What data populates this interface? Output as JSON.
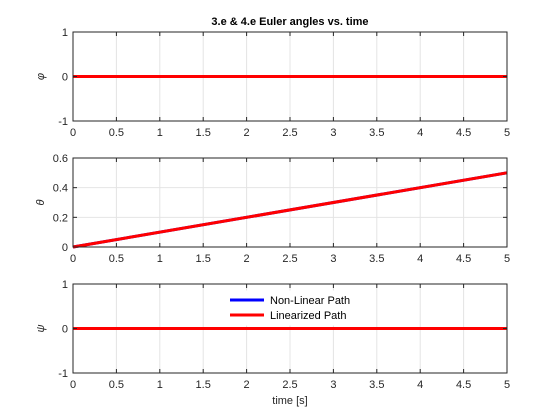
{
  "chart_data": [
    {
      "type": "line",
      "title": "3.e & 4.e Euler angles vs. time",
      "xlabel": "",
      "ylabel": "φ",
      "xlim": [
        0,
        5
      ],
      "ylim": [
        -1,
        1
      ],
      "xticks": [
        "0",
        "0.5",
        "1",
        "1.5",
        "2",
        "2.5",
        "3",
        "3.5",
        "4",
        "4.5",
        "5"
      ],
      "yticks": [
        "-1",
        "0",
        "1"
      ],
      "grid": true,
      "x": [
        0,
        5
      ],
      "series": [
        {
          "color": "#0000ff",
          "values": [
            0,
            0
          ]
        },
        {
          "color": "#ff0000",
          "values": [
            0,
            0
          ]
        }
      ]
    },
    {
      "type": "line",
      "title": "",
      "xlabel": "",
      "ylabel": "θ",
      "xlim": [
        0,
        5
      ],
      "ylim": [
        0,
        0.6
      ],
      "xticks": [
        "0",
        "0.5",
        "1",
        "1.5",
        "2",
        "2.5",
        "3",
        "3.5",
        "4",
        "4.5",
        "5"
      ],
      "yticks": [
        "0",
        "0.2",
        "0.4",
        "0.6"
      ],
      "grid": true,
      "x": [
        0,
        5
      ],
      "series": [
        {
          "color": "#0000ff",
          "values": [
            0,
            0.5
          ]
        },
        {
          "color": "#ff0000",
          "values": [
            0,
            0.5
          ]
        }
      ]
    },
    {
      "type": "line",
      "title": "",
      "xlabel": "time [s]",
      "ylabel": "ψ",
      "xlim": [
        0,
        5
      ],
      "ylim": [
        -1,
        1
      ],
      "xticks": [
        "0",
        "0.5",
        "1",
        "1.5",
        "2",
        "2.5",
        "3",
        "3.5",
        "4",
        "4.5",
        "5"
      ],
      "yticks": [
        "-1",
        "0",
        "1"
      ],
      "grid": true,
      "legend": "top-center",
      "x": [
        0,
        5
      ],
      "series": [
        {
          "name": "Non-Linear Path",
          "color": "#0000ff",
          "values": [
            0,
            0
          ]
        },
        {
          "name": "Linearized Path",
          "color": "#ff0000",
          "values": [
            0,
            0
          ]
        }
      ]
    }
  ]
}
